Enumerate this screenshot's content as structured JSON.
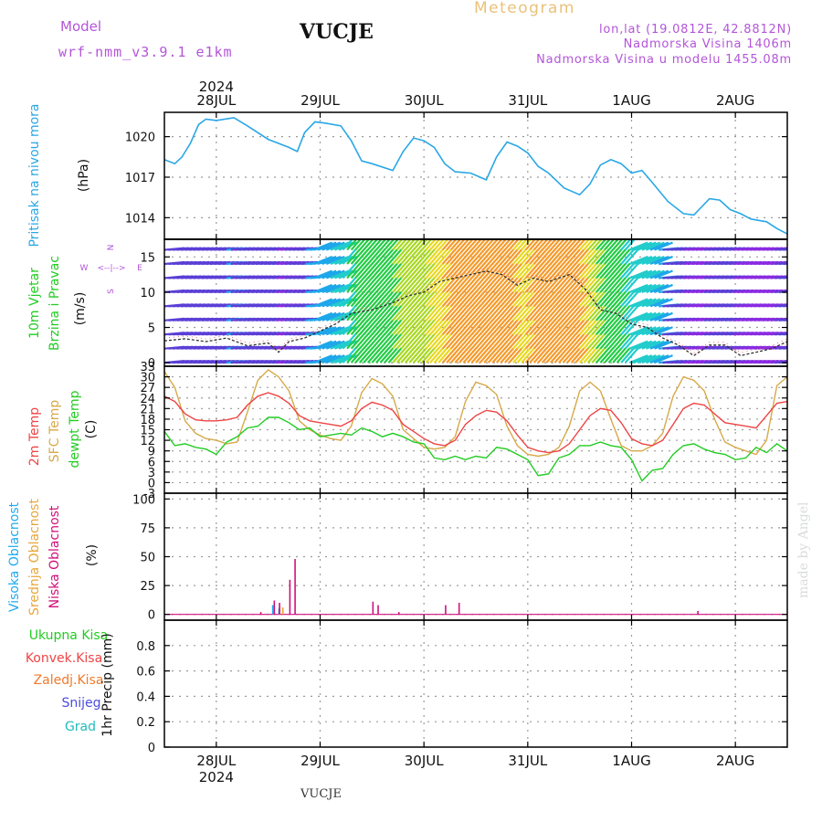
{
  "header": {
    "model_label": "Model",
    "model_name": "wrf-nmm_v3.9.1 e1km",
    "station": "VUCJE",
    "meteogram": "Meteogram",
    "lonlat": "lon,lat (19.0812E, 42.8812N)",
    "altitude": "Nadmorska Visina 1406m",
    "model_altitude": "Nadmorska Visina u modelu 1455.08m",
    "footer_station": "VUCJE",
    "credit": "made by Angel"
  },
  "colors": {
    "pressure": "#2aa7e6",
    "temp2m": "#ee4444",
    "sfc_temp": "#d7a94a",
    "dewpoint": "#22cc22",
    "high_cloud": "#22aaee",
    "mid_cloud": "#e7a63a",
    "low_cloud": "#d0107a",
    "purple": "#b355d8"
  },
  "time_axis": {
    "year": "2024",
    "days": [
      "28JUL",
      "29JUL",
      "30JUL",
      "31JUL",
      "1AUG",
      "2AUG"
    ]
  },
  "chart_data": [
    {
      "type": "line",
      "name": "pressure",
      "ylabel_1": "Pritisak na nivou mora",
      "unit": "(hPa)",
      "yticks": [
        1014,
        1017,
        1020
      ],
      "ylim": [
        1012.4,
        1021.8
      ],
      "xlim": [
        -0.5,
        5.5
      ],
      "x": [
        -0.5,
        -0.4,
        -0.33,
        -0.25,
        -0.17,
        -0.1,
        0.0,
        0.17,
        0.3,
        0.5,
        0.7,
        0.78,
        0.85,
        0.95,
        1.05,
        1.2,
        1.3,
        1.4,
        1.5,
        1.7,
        1.8,
        1.9,
        2.0,
        2.1,
        2.2,
        2.3,
        2.45,
        2.6,
        2.7,
        2.8,
        2.9,
        3.0,
        3.1,
        3.2,
        3.35,
        3.5,
        3.6,
        3.7,
        3.8,
        3.9,
        4.0,
        4.1,
        4.2,
        4.35,
        4.5,
        4.6,
        4.75,
        4.85,
        4.95,
        5.05,
        5.15,
        5.3,
        5.4,
        5.5
      ],
      "values": [
        1018.3,
        1018.0,
        1018.5,
        1019.5,
        1020.9,
        1021.3,
        1021.2,
        1021.4,
        1020.8,
        1019.8,
        1019.2,
        1018.9,
        1020.3,
        1021.1,
        1021.0,
        1020.8,
        1019.7,
        1018.2,
        1018.0,
        1017.5,
        1018.9,
        1019.9,
        1019.7,
        1019.2,
        1018.0,
        1017.4,
        1017.3,
        1016.8,
        1018.5,
        1019.6,
        1019.3,
        1018.8,
        1017.8,
        1017.3,
        1016.2,
        1015.7,
        1016.5,
        1017.9,
        1018.3,
        1018.0,
        1017.3,
        1017.5,
        1016.6,
        1015.2,
        1014.3,
        1014.2,
        1015.4,
        1015.3,
        1014.6,
        1014.3,
        1013.9,
        1013.7,
        1013.2,
        1012.8
      ]
    },
    {
      "type": "scatter",
      "name": "wind",
      "ylabel_1": "10m Vjetar",
      "ylabel_2": "Brzina i Pravac",
      "unit": "(m/s)",
      "yticks": [
        0,
        5,
        10,
        15
      ],
      "ylim": [
        -0.5,
        17.5
      ],
      "xlim": [
        -0.5,
        5.5
      ],
      "compass": {
        "n": "N",
        "s": "S",
        "e": "E",
        "w": "W",
        "arrows": "<--|-->"
      },
      "x": [
        -0.5,
        -0.3,
        -0.1,
        0.1,
        0.3,
        0.5,
        0.6,
        0.7,
        0.85,
        1.0,
        1.15,
        1.3,
        1.5,
        1.7,
        1.85,
        2.0,
        2.15,
        2.3,
        2.45,
        2.6,
        2.75,
        2.9,
        3.05,
        3.2,
        3.4,
        3.55,
        3.7,
        3.85,
        4.0,
        4.15,
        4.3,
        4.45,
        4.6,
        4.75,
        4.9,
        5.05,
        5.2,
        5.35,
        5.5
      ],
      "speed": [
        3.1,
        3.4,
        3.0,
        3.5,
        2.4,
        2.8,
        1.5,
        3.0,
        3.5,
        4.5,
        5.5,
        7.0,
        7.5,
        8.5,
        9.5,
        10.0,
        11.5,
        12.0,
        12.5,
        13.0,
        12.5,
        11.0,
        12.0,
        11.5,
        12.5,
        10.5,
        7.5,
        7.0,
        5.5,
        5.0,
        3.5,
        2.5,
        1.0,
        2.5,
        2.5,
        1.0,
        1.5,
        2.0,
        3.0
      ]
    },
    {
      "type": "line",
      "name": "temperature",
      "ylabel_1": "2m Temp",
      "ylabel_2": "SFC Temp",
      "ylabel_3": "dewpt Temp",
      "unit": "(C)",
      "yticks": [
        -3,
        0,
        3,
        6,
        9,
        12,
        15,
        18,
        21,
        24,
        27,
        30,
        33
      ],
      "ylim": [
        -3,
        33
      ],
      "xlim": [
        -0.5,
        5.5
      ],
      "x": [
        -0.5,
        -0.4,
        -0.3,
        -0.2,
        -0.1,
        0.0,
        0.1,
        0.2,
        0.3,
        0.4,
        0.5,
        0.6,
        0.7,
        0.8,
        0.9,
        1.0,
        1.1,
        1.2,
        1.3,
        1.4,
        1.5,
        1.6,
        1.7,
        1.8,
        1.9,
        2.0,
        2.1,
        2.2,
        2.3,
        2.4,
        2.5,
        2.6,
        2.7,
        2.8,
        2.9,
        3.0,
        3.1,
        3.2,
        3.3,
        3.4,
        3.5,
        3.6,
        3.7,
        3.8,
        3.9,
        4.0,
        4.1,
        4.2,
        4.3,
        4.4,
        4.5,
        4.6,
        4.7,
        4.8,
        4.9,
        5.0,
        5.1,
        5.2,
        5.3,
        5.4,
        5.5
      ],
      "series": [
        {
          "name": "2m Temp",
          "values": [
            24.5,
            23.0,
            19.5,
            17.8,
            17.5,
            17.5,
            17.8,
            18.5,
            22.0,
            24.5,
            25.5,
            24.5,
            22.5,
            19.0,
            17.5,
            17.0,
            16.5,
            16.0,
            17.5,
            21.0,
            22.8,
            22.0,
            20.5,
            16.5,
            14.5,
            12.5,
            11.0,
            10.5,
            12.0,
            16.5,
            19.0,
            20.5,
            20.0,
            17.5,
            13.5,
            10.0,
            9.0,
            8.5,
            9.0,
            11.0,
            15.0,
            19.0,
            21.0,
            20.5,
            17.0,
            12.5,
            11.0,
            10.5,
            12.0,
            16.5,
            21.0,
            22.5,
            22.0,
            19.5,
            17.0,
            16.5,
            16.0,
            15.5,
            19.0,
            22.5,
            23.0
          ]
        },
        {
          "name": "SFC Temp",
          "values": [
            31.5,
            27.0,
            17.5,
            14.0,
            12.5,
            12.0,
            11.0,
            11.5,
            20.0,
            29.0,
            32.0,
            30.0,
            26.0,
            17.5,
            15.0,
            13.5,
            12.5,
            12.0,
            16.0,
            25.5,
            29.5,
            28.0,
            24.5,
            15.0,
            12.5,
            10.0,
            9.5,
            10.0,
            13.0,
            23.0,
            28.5,
            27.5,
            25.0,
            16.0,
            10.5,
            8.0,
            7.5,
            8.0,
            10.0,
            16.0,
            26.0,
            28.5,
            26.0,
            18.0,
            10.5,
            9.0,
            9.0,
            10.5,
            14.0,
            24.5,
            30.0,
            29.0,
            26.0,
            18.0,
            11.5,
            10.0,
            9.0,
            8.0,
            12.0,
            27.5,
            30.0
          ]
        },
        {
          "name": "dewpt Temp",
          "values": [
            14.5,
            10.5,
            11.0,
            10.0,
            9.5,
            8.0,
            11.5,
            13.0,
            15.5,
            16.0,
            18.5,
            18.5,
            17.0,
            15.0,
            15.5,
            13.0,
            13.5,
            14.0,
            13.5,
            15.5,
            14.5,
            13.0,
            14.0,
            13.0,
            11.5,
            11.0,
            7.0,
            6.5,
            7.5,
            6.5,
            7.5,
            7.0,
            10.0,
            9.5,
            8.0,
            6.5,
            2.0,
            2.5,
            7.0,
            8.0,
            10.5,
            10.5,
            11.5,
            10.5,
            10.0,
            6.5,
            0.5,
            3.5,
            4.0,
            8.0,
            10.5,
            11.0,
            9.5,
            8.5,
            8.0,
            6.5,
            7.0,
            10.0,
            8.5,
            11.0,
            9.0
          ]
        }
      ]
    },
    {
      "type": "bar",
      "name": "cloud",
      "ylabel_1": "Visoka Oblacnost",
      "ylabel_2": "Srednja Oblacnost",
      "ylabel_3": "Niska Oblacnost",
      "unit": "(%)",
      "yticks": [
        0,
        25,
        50,
        75,
        100
      ],
      "ylim": [
        -5,
        105
      ],
      "xlim": [
        -0.5,
        5.5
      ],
      "low": {
        "x": [
          0.42,
          0.55,
          0.6,
          0.7,
          0.75,
          1.5,
          1.55,
          1.75,
          2.2,
          2.33,
          4.63
        ],
        "values": [
          2,
          12,
          10,
          30,
          48,
          11,
          8,
          2,
          8,
          10,
          3
        ]
      },
      "mid": {
        "x": [
          0.62,
          0.65
        ],
        "values": [
          7,
          6
        ]
      },
      "high": {
        "x": [
          0.57,
          0.63
        ],
        "values": [
          8,
          5
        ]
      }
    },
    {
      "type": "bar",
      "name": "precipitation",
      "ylabel": "1hr Precip (mm)",
      "legend": [
        "Ukupna Kisa",
        "Konvek.Kisa",
        "Zaledj.Kisa",
        "Snijeg",
        "Grad"
      ],
      "legend_colors": [
        "#22cc22",
        "#ee4444",
        "#f07a2a",
        "#4b4bdd",
        "#22bbbb"
      ],
      "yticks": [
        0,
        0.2,
        0.4,
        0.6,
        0.8
      ],
      "ylim": [
        0,
        1.0
      ],
      "xlim": [
        -0.5,
        5.5
      ],
      "x": [],
      "values": []
    }
  ]
}
